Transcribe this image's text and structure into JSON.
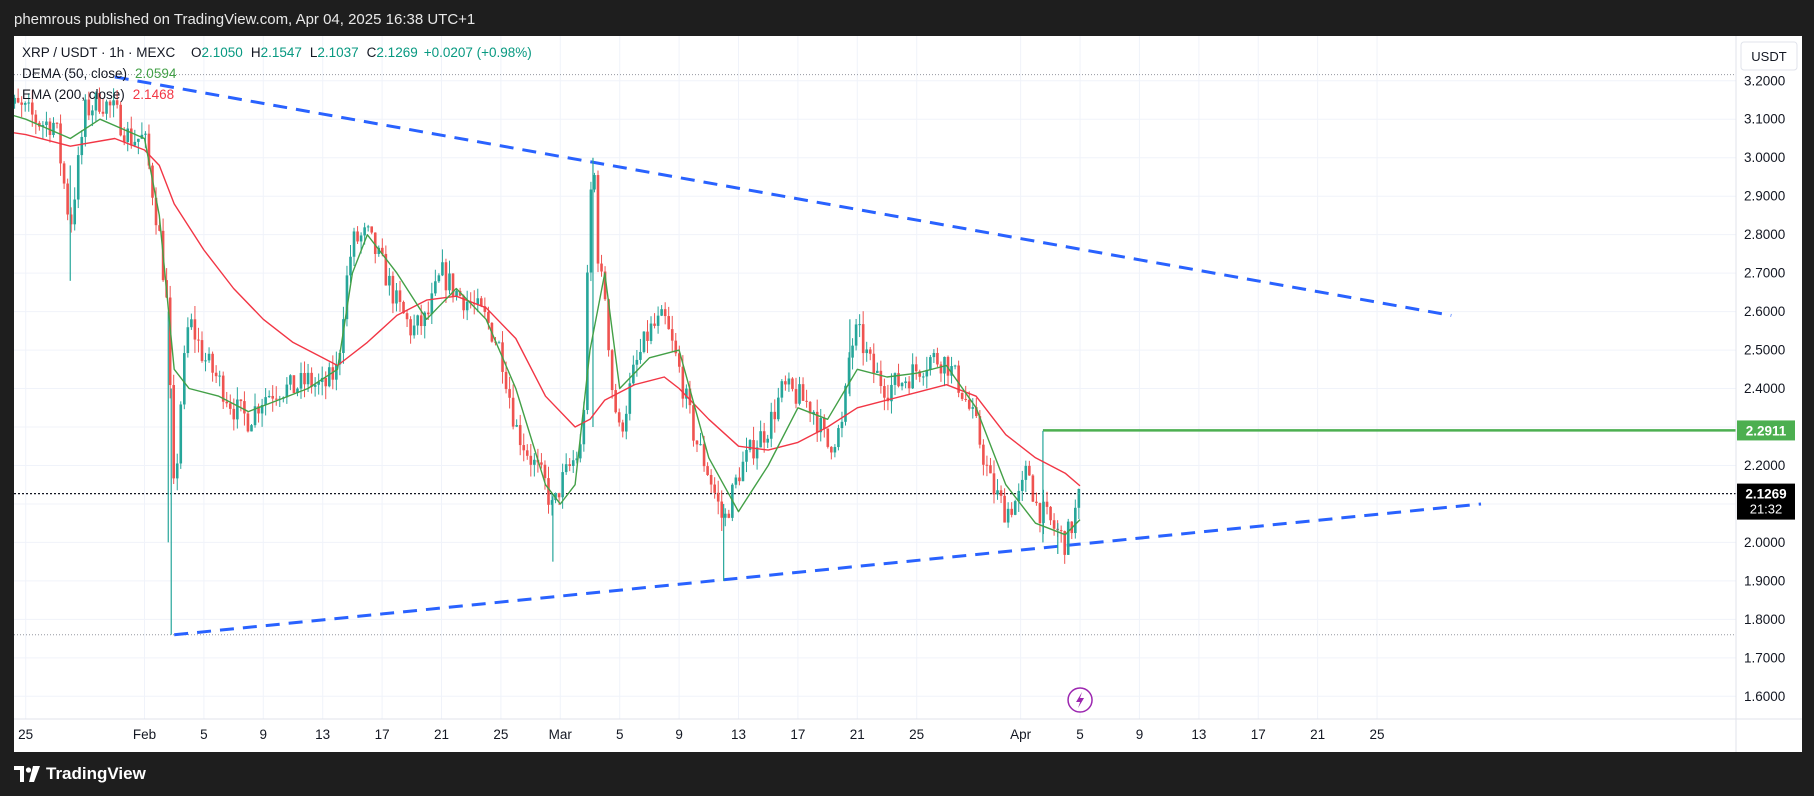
{
  "header": {
    "publish_line": "phemrous published on TradingView.com, Apr 04, 2025 16:38 UTC+1"
  },
  "footer": {
    "brand": "TradingView"
  },
  "legend": {
    "symbol": "XRP / USDT · 1h · MEXC",
    "o_label": "O",
    "o_value": "2.1050",
    "h_label": "H",
    "h_value": "2.1547",
    "l_label": "L",
    "l_value": "2.1037",
    "c_label": "C",
    "c_value": "2.1269",
    "change": "+0.0207 (+0.98%)",
    "dema_label": "DEMA (50, close)",
    "dema_value": "2.0594",
    "ema_label": "EMA (200, close)",
    "ema_value": "2.1468"
  },
  "price_axis": {
    "currency": "USDT",
    "last_price": "2.1269",
    "countdown": "21:32",
    "level_label": "2.2911"
  },
  "colors": {
    "up": "#26a69a",
    "down": "#ef5350",
    "dema": "#43a047",
    "ema": "#f23645",
    "trendline": "#2962ff",
    "level": "#4caf50",
    "badge": "#9c27b0",
    "grid": "#f0f3fa",
    "axis_text": "#131722"
  },
  "icons": {
    "event_marker": "lightning-icon",
    "brand_logo": "tradingview-logo-icon"
  },
  "chart_data": {
    "type": "candlestick",
    "timeframe": "1h",
    "ylim": [
      1.58,
      3.28
    ],
    "y_ticks": [
      "3.2000",
      "3.1000",
      "3.0000",
      "2.9000",
      "2.8000",
      "2.7000",
      "2.6000",
      "2.5000",
      "2.4000",
      "2.3000",
      "2.2000",
      "2.1000",
      "2.0000",
      "1.9000",
      "1.8000",
      "1.7000",
      "1.6000"
    ],
    "x_ticks": [
      {
        "label": "25",
        "day": -8
      },
      {
        "label": "Feb",
        "day": 0
      },
      {
        "label": "5",
        "day": 4
      },
      {
        "label": "9",
        "day": 8
      },
      {
        "label": "13",
        "day": 12
      },
      {
        "label": "17",
        "day": 16
      },
      {
        "label": "21",
        "day": 20
      },
      {
        "label": "25",
        "day": 24
      },
      {
        "label": "Mar",
        "day": 28
      },
      {
        "label": "5",
        "day": 32
      },
      {
        "label": "9",
        "day": 36
      },
      {
        "label": "13",
        "day": 40
      },
      {
        "label": "17",
        "day": 44
      },
      {
        "label": "21",
        "day": 48
      },
      {
        "label": "25",
        "day": 52
      },
      {
        "label": "Apr",
        "day": 59
      },
      {
        "label": "5",
        "day": 63
      },
      {
        "label": "9",
        "day": 67
      },
      {
        "label": "13",
        "day": 71
      },
      {
        "label": "17",
        "day": 75
      },
      {
        "label": "21",
        "day": 79
      },
      {
        "label": "25",
        "day": 83
      }
    ],
    "price_path": [
      [
        -9.7,
        3.15
      ],
      [
        -8,
        3.12
      ],
      [
        -7,
        3.09
      ],
      [
        -6,
        3.09
      ],
      [
        -5,
        2.82
      ],
      [
        -4,
        3.12
      ],
      [
        -3,
        3.15
      ],
      [
        -2,
        3.12
      ],
      [
        -1,
        3.05
      ],
      [
        0,
        3.05
      ],
      [
        1,
        2.8
      ],
      [
        1.5,
        2.62
      ],
      [
        2,
        2.1
      ],
      [
        2.5,
        2.4
      ],
      [
        3,
        2.58
      ],
      [
        4,
        2.48
      ],
      [
        5,
        2.42
      ],
      [
        6,
        2.35
      ],
      [
        7,
        2.32
      ],
      [
        8,
        2.38
      ],
      [
        9,
        2.4
      ],
      [
        10,
        2.4
      ],
      [
        11,
        2.42
      ],
      [
        12,
        2.4
      ],
      [
        13,
        2.45
      ],
      [
        13.5,
        2.65
      ],
      [
        14,
        2.78
      ],
      [
        15,
        2.8
      ],
      [
        16,
        2.72
      ],
      [
        17,
        2.62
      ],
      [
        18,
        2.55
      ],
      [
        19,
        2.58
      ],
      [
        20,
        2.7
      ],
      [
        21,
        2.65
      ],
      [
        22,
        2.62
      ],
      [
        23,
        2.58
      ],
      [
        24,
        2.5
      ],
      [
        25,
        2.3
      ],
      [
        26,
        2.22
      ],
      [
        27,
        2.15
      ],
      [
        27.5,
        2.08
      ],
      [
        28,
        2.15
      ],
      [
        29,
        2.22
      ],
      [
        29.5,
        2.25
      ],
      [
        30,
        2.9
      ],
      [
        30.3,
        2.95
      ],
      [
        30.6,
        2.7
      ],
      [
        31,
        2.65
      ],
      [
        31.5,
        2.4
      ],
      [
        32,
        2.28
      ],
      [
        33,
        2.45
      ],
      [
        34,
        2.55
      ],
      [
        35,
        2.58
      ],
      [
        36,
        2.45
      ],
      [
        37,
        2.28
      ],
      [
        38,
        2.18
      ],
      [
        39,
        2.05
      ],
      [
        40,
        2.18
      ],
      [
        41,
        2.25
      ],
      [
        42,
        2.3
      ],
      [
        43,
        2.4
      ],
      [
        44,
        2.38
      ],
      [
        45,
        2.35
      ],
      [
        46,
        2.25
      ],
      [
        47,
        2.3
      ],
      [
        47.5,
        2.5
      ],
      [
        48,
        2.55
      ],
      [
        49,
        2.45
      ],
      [
        50,
        2.4
      ],
      [
        51,
        2.42
      ],
      [
        52,
        2.45
      ],
      [
        53,
        2.48
      ],
      [
        54,
        2.47
      ],
      [
        55,
        2.4
      ],
      [
        56,
        2.3
      ],
      [
        57,
        2.15
      ],
      [
        58,
        2.08
      ],
      [
        59,
        2.12
      ],
      [
        59.5,
        2.2
      ],
      [
        60,
        2.1
      ],
      [
        61,
        2.05
      ],
      [
        62,
        2.0
      ],
      [
        62.5,
        2.05
      ],
      [
        63,
        2.1269
      ]
    ],
    "ema_path": [
      [
        -9.7,
        3.07
      ],
      [
        -8,
        3.06
      ],
      [
        -5,
        3.03
      ],
      [
        -2,
        3.05
      ],
      [
        0,
        3.02
      ],
      [
        1,
        2.98
      ],
      [
        2,
        2.88
      ],
      [
        4,
        2.76
      ],
      [
        6,
        2.66
      ],
      [
        8,
        2.58
      ],
      [
        10,
        2.52
      ],
      [
        12,
        2.48
      ],
      [
        13,
        2.46
      ],
      [
        15,
        2.52
      ],
      [
        17,
        2.59
      ],
      [
        19,
        2.63
      ],
      [
        21,
        2.64
      ],
      [
        23,
        2.61
      ],
      [
        25,
        2.53
      ],
      [
        27,
        2.38
      ],
      [
        29,
        2.3
      ],
      [
        30,
        2.32
      ],
      [
        31,
        2.37
      ],
      [
        33,
        2.41
      ],
      [
        35,
        2.43
      ],
      [
        36,
        2.4
      ],
      [
        38,
        2.32
      ],
      [
        40,
        2.25
      ],
      [
        42,
        2.24
      ],
      [
        44,
        2.26
      ],
      [
        46,
        2.3
      ],
      [
        48,
        2.35
      ],
      [
        50,
        2.37
      ],
      [
        52,
        2.39
      ],
      [
        54,
        2.41
      ],
      [
        56,
        2.38
      ],
      [
        58,
        2.28
      ],
      [
        60,
        2.22
      ],
      [
        62,
        2.18
      ],
      [
        63,
        2.1468
      ]
    ],
    "dema_path": [
      [
        -9.7,
        3.12
      ],
      [
        -8,
        3.1
      ],
      [
        -5,
        3.05
      ],
      [
        -3,
        3.1
      ],
      [
        0,
        3.05
      ],
      [
        1,
        2.85
      ],
      [
        2,
        2.45
      ],
      [
        3,
        2.4
      ],
      [
        5,
        2.38
      ],
      [
        7,
        2.34
      ],
      [
        9,
        2.37
      ],
      [
        11,
        2.4
      ],
      [
        13,
        2.45
      ],
      [
        14,
        2.7
      ],
      [
        15,
        2.8
      ],
      [
        17,
        2.7
      ],
      [
        19,
        2.58
      ],
      [
        21,
        2.66
      ],
      [
        23,
        2.58
      ],
      [
        25,
        2.4
      ],
      [
        27,
        2.15
      ],
      [
        28,
        2.1
      ],
      [
        29,
        2.15
      ],
      [
        30,
        2.5
      ],
      [
        31,
        2.7
      ],
      [
        32,
        2.4
      ],
      [
        34,
        2.48
      ],
      [
        36,
        2.5
      ],
      [
        38,
        2.22
      ],
      [
        40,
        2.08
      ],
      [
        42,
        2.2
      ],
      [
        44,
        2.35
      ],
      [
        46,
        2.32
      ],
      [
        48,
        2.45
      ],
      [
        50,
        2.43
      ],
      [
        52,
        2.44
      ],
      [
        54,
        2.46
      ],
      [
        56,
        2.35
      ],
      [
        58,
        2.15
      ],
      [
        60,
        2.05
      ],
      [
        62,
        2.02
      ],
      [
        63,
        2.0594
      ]
    ],
    "spikes": [
      {
        "day": -5,
        "low": 2.68,
        "high": 2.98
      },
      {
        "day": 1.6,
        "low": 2.0,
        "high": 2.6
      },
      {
        "day": 1.8,
        "low": 1.76,
        "high": 2.4
      },
      {
        "day": 27.5,
        "low": 1.95,
        "high": 2.12
      },
      {
        "day": 30.2,
        "low": 2.3,
        "high": 3.0
      },
      {
        "day": 39,
        "low": 1.9,
        "high": 2.1
      },
      {
        "day": 47.5,
        "low": 2.38,
        "high": 2.58
      },
      {
        "day": 60.5,
        "low": 2.0,
        "high": 2.29
      },
      {
        "day": 61.5,
        "low": 1.97,
        "high": 2.05
      }
    ],
    "trendlines": [
      {
        "name": "resistance",
        "points": [
          [
            -2,
            3.21
          ],
          [
            30,
            3.0
          ],
          [
            88,
            2.59
          ]
        ]
      },
      {
        "name": "support",
        "points": [
          [
            2,
            1.76
          ],
          [
            39,
            1.9
          ],
          [
            62,
            1.98
          ],
          [
            90,
            2.1
          ]
        ]
      }
    ],
    "horizontal_levels": [
      {
        "name": "resistance-level",
        "price": 2.2911,
        "from_day": 60.5
      },
      {
        "name": "last-price",
        "price": 2.1269
      },
      {
        "name": "range-high",
        "price": 3.216
      },
      {
        "name": "range-low",
        "price": 1.76
      }
    ],
    "event_marker_day": 63
  }
}
